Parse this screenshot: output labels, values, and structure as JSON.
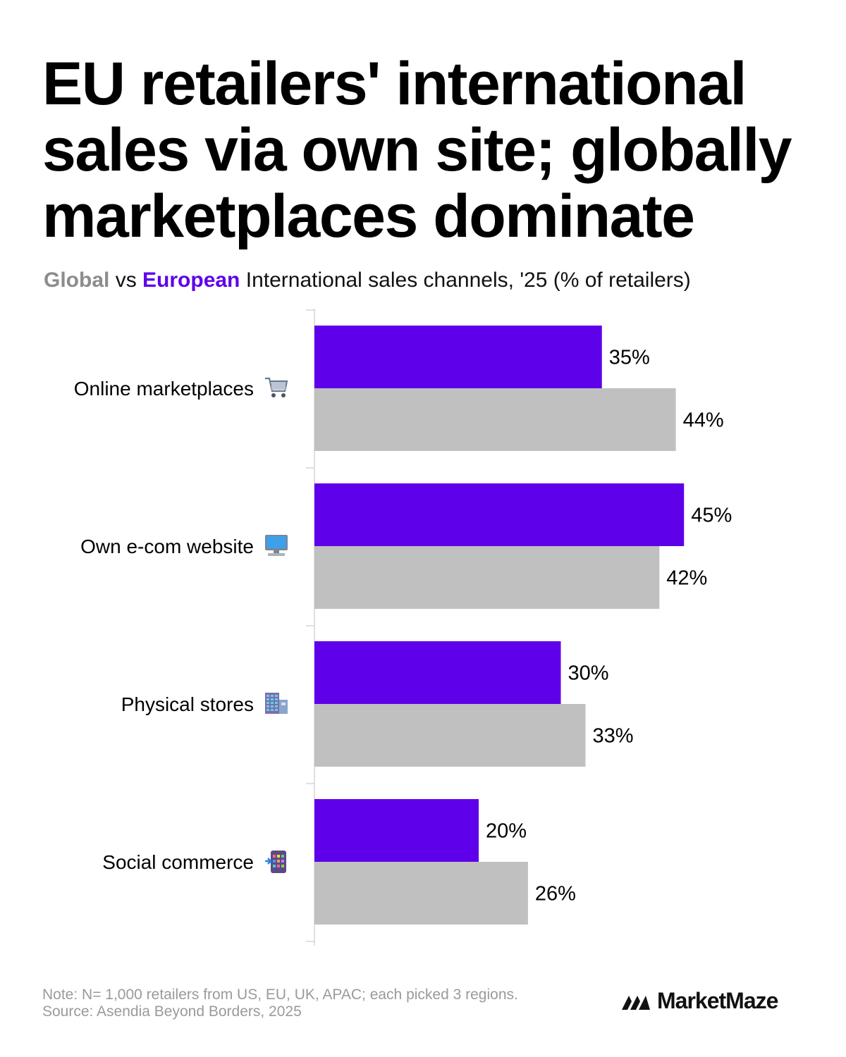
{
  "title": "EU retailers' international sales via own site; globally marketplaces dominate",
  "subtitle": {
    "global": "Global",
    "vs": "vs",
    "european": "European",
    "rest": "International sales channels, '25 (% of retailers)"
  },
  "colors": {
    "european": "#5f00ea",
    "global": "#c0c0c0",
    "axis": "#d6d6d6"
  },
  "chart_data": {
    "type": "bar",
    "orientation": "horizontal",
    "categories": [
      {
        "label": "Online marketplaces",
        "icon": "shopping-cart-icon"
      },
      {
        "label": "Own e-com website",
        "icon": "desktop-computer-icon"
      },
      {
        "label": "Physical stores",
        "icon": "office-building-icon"
      },
      {
        "label": "Social commerce",
        "icon": "mobile-phone-arrow-icon"
      }
    ],
    "series": [
      {
        "name": "European",
        "color": "#5f00ea",
        "values": [
          35,
          45,
          30,
          20
        ],
        "labels": [
          "35%",
          "45%",
          "30%",
          "20%"
        ]
      },
      {
        "name": "Global",
        "color": "#c0c0c0",
        "values": [
          44,
          42,
          33,
          26
        ],
        "labels": [
          "44%",
          "42%",
          "33%",
          "26%"
        ]
      }
    ],
    "xlim": [
      0,
      45
    ],
    "grid": false,
    "legend": "in subtitle"
  },
  "footer": {
    "note": "Note: N= 1,000 retailers from US, EU, UK, APAC; each picked 3 regions.",
    "source": "Source: Asendia Beyond Borders, 2025",
    "brand": "MarketMaze"
  }
}
